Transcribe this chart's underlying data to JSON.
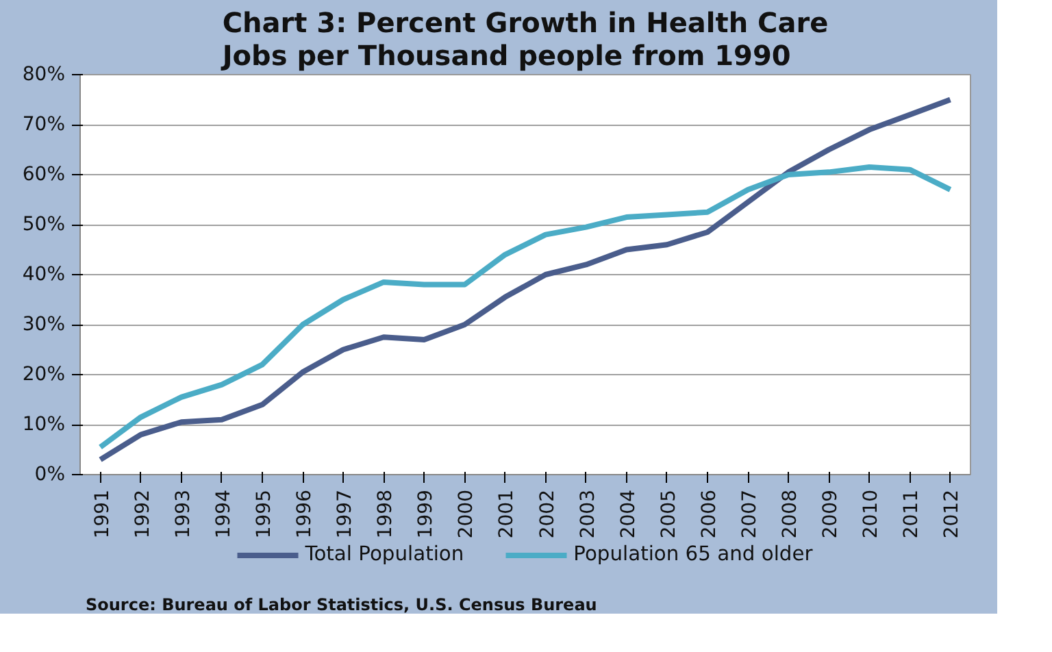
{
  "chart_data": {
    "type": "line",
    "title": "Chart 3: Percent Growth in Health Care\nJobs per Thousand people from 1990",
    "categories": [
      "1991",
      "1992",
      "1993",
      "1994",
      "1995",
      "1996",
      "1997",
      "1998",
      "1999",
      "2000",
      "2001",
      "2002",
      "2003",
      "2004",
      "2005",
      "2006",
      "2007",
      "2008",
      "2009",
      "2010",
      "2011",
      "2012"
    ],
    "series": [
      {
        "name": "Total Population",
        "color": "#4a5d8c",
        "values": [
          3,
          8,
          10.5,
          11,
          14,
          20.5,
          25,
          27.5,
          27,
          30,
          35.5,
          40,
          42,
          45,
          46,
          48.5,
          54.5,
          60.5,
          65,
          69,
          72,
          75
        ]
      },
      {
        "name": "Population 65 and older",
        "color": "#4bacc6",
        "values": [
          5.5,
          11.5,
          15.5,
          18,
          22,
          30,
          35,
          38.5,
          38,
          38,
          44,
          48,
          49.5,
          51.5,
          52,
          52.5,
          57,
          60,
          60.5,
          61.5,
          61,
          57
        ]
      }
    ],
    "ylim": [
      0,
      80
    ],
    "yticks": [
      {
        "value": 0,
        "label": "0%"
      },
      {
        "value": 10,
        "label": "10%"
      },
      {
        "value": 20,
        "label": "20%"
      },
      {
        "value": 30,
        "label": "30%"
      },
      {
        "value": 40,
        "label": "40%"
      },
      {
        "value": 50,
        "label": "50%"
      },
      {
        "value": 60,
        "label": "60%"
      },
      {
        "value": 70,
        "label": "70%"
      },
      {
        "value": 80,
        "label": "80%"
      }
    ],
    "grid": "y",
    "legend": "bottom",
    "line_style": "solid",
    "annotations": [
      "Source: Bureau of Labor Statistics, U.S. Census Bureau"
    ]
  }
}
